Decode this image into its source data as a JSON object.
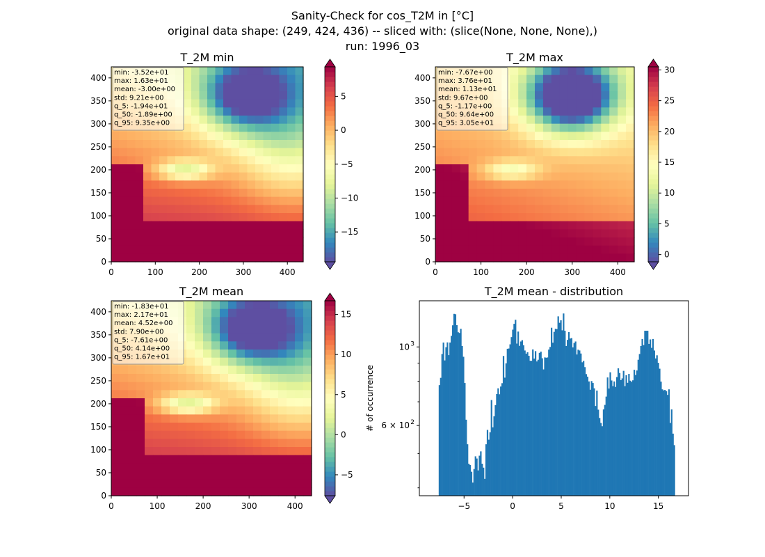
{
  "suptitle": {
    "line1": "Sanity-Check for cos_T2M in [°C]",
    "line2": "original data shape: (249, 424, 436) -- sliced with: (slice(None, None, None),)",
    "line3": "run: 1996_03"
  },
  "colors": {
    "hist_bar": "#1f77b4",
    "colormap": [
      "#5e4fa2",
      "#3288bd",
      "#66c2a5",
      "#abdda4",
      "#e6f598",
      "#ffffbf",
      "#fee08b",
      "#fdae61",
      "#f46d43",
      "#d53e4f",
      "#9e0142"
    ]
  },
  "chart_data": [
    {
      "type": "heatmap",
      "title": "T_2M min",
      "xlim": [
        0,
        436
      ],
      "ylim": [
        0,
        424
      ],
      "xticks": [
        0,
        100,
        200,
        300,
        400
      ],
      "yticks": [
        0,
        50,
        100,
        150,
        200,
        250,
        300,
        350,
        400
      ],
      "colorbar": {
        "range": [
          -19.4,
          9.35
        ],
        "ticks": [
          5,
          0,
          -5,
          -10,
          -15
        ],
        "tick_labels": [
          "5",
          "0",
          "−5",
          "−10",
          "−15"
        ],
        "extend": "both"
      },
      "stats": [
        "min: -3.52e+01",
        "max: 1.63e+01",
        "mean: -3.00e+00",
        "std: 9.21e+00",
        "q_5: -1.94e+01",
        "q_50: -1.89e+00",
        "q_95: 9.35e+00"
      ]
    },
    {
      "type": "heatmap",
      "title": "T_2M max",
      "xlim": [
        0,
        436
      ],
      "ylim": [
        0,
        424
      ],
      "xticks": [
        0,
        100,
        200,
        300,
        400
      ],
      "yticks": [
        0,
        50,
        100,
        150,
        200,
        250,
        300,
        350,
        400
      ],
      "colorbar": {
        "range": [
          -1.17,
          30.5
        ],
        "ticks": [
          30,
          25,
          20,
          15,
          10,
          5,
          0
        ],
        "tick_labels": [
          "30",
          "25",
          "20",
          "15",
          "10",
          "5",
          "0"
        ],
        "extend": "both"
      },
      "stats": [
        "min: -7.67e+00",
        "max: 3.76e+01",
        "mean: 1.13e+01",
        "std: 9.67e+00",
        "q_5: -1.17e+00",
        "q_50: 9.64e+00",
        "q_95: 3.05e+01"
      ]
    },
    {
      "type": "heatmap",
      "title": "T_2M mean",
      "xlim": [
        0,
        436
      ],
      "ylim": [
        0,
        424
      ],
      "xticks": [
        0,
        100,
        200,
        300,
        400
      ],
      "yticks": [
        0,
        50,
        100,
        150,
        200,
        250,
        300,
        350,
        400
      ],
      "colorbar": {
        "range": [
          -7.61,
          16.7
        ],
        "ticks": [
          15,
          10,
          5,
          0,
          -5
        ],
        "tick_labels": [
          "15",
          "10",
          "5",
          "0",
          "−5"
        ],
        "extend": "both"
      },
      "stats": [
        "min: -1.83e+01",
        "max: 2.17e+01",
        "mean: 4.52e+00",
        "std: 7.90e+00",
        "q_5: -7.61e+00",
        "q_50: 4.14e+00",
        "q_95: 1.67e+01"
      ]
    },
    {
      "type": "bar",
      "title": "T_2M mean - distribution",
      "ylabel": "# of occurrence",
      "yscale": "log",
      "xlim": [
        -9.6,
        18.1
      ],
      "ylim": [
        380,
        1350
      ],
      "xticks": [
        -5,
        0,
        5,
        10,
        15
      ],
      "xtick_labels": [
        "−5",
        "0",
        "5",
        "10",
        "15"
      ],
      "ytick_labels": [
        {
          "value": 1000,
          "base": "10",
          "exp": "3"
        },
        {
          "value": 600,
          "base": "6 × 10",
          "exp": "2"
        }
      ],
      "bin_range": [
        -7.61,
        16.7
      ],
      "counts": [
        780,
        818,
        955,
        1029,
        916,
        998,
        1030,
        948,
        1029,
        1075,
        1151,
        1240,
        1237,
        1152,
        1100,
        1095,
        1125,
        1006,
        938,
        791,
        623,
        531,
        468,
        464,
        444,
        414,
        452,
        491,
        484,
        448,
        493,
        507,
        468,
        456,
        424,
        531,
        583,
        547,
        574,
        708,
        593,
        637,
        685,
        736,
        764,
        735,
        773,
        790,
        943,
        819,
        899,
        988,
        990,
        1017,
        1066,
        1119,
        1162,
        1193,
        1022,
        1105,
        1007,
        1036,
        1045,
        1011,
        977,
        957,
        966,
        944,
        914,
        914,
        984,
        927,
        973,
        910,
        920,
        962,
        970,
        929,
        864,
        934,
        932,
        934,
        983,
        1000,
        1133,
        1028,
        1103,
        1125,
        1123,
        1220,
        1170,
        1189,
        1114,
        1243,
        1111,
        1006,
        1047,
        1101,
        1056,
        1059,
        997,
        1026,
        1036,
        952,
        982,
        977,
        958,
        905,
        913,
        877,
        838,
        824,
        799,
        757,
        801,
        791,
        764,
        681,
        753,
        665,
        630,
        610,
        597,
        666,
        686,
        724,
        820,
        763,
        848,
        804,
        775,
        799,
        771,
        822,
        870,
        844,
        806,
        815,
        856,
        775,
        832,
        792,
        839,
        803,
        797,
        805,
        862,
        833,
        858,
        920,
        955,
        1006,
        1053,
        1012,
        1111,
        1111,
        1111,
        1020,
        1050,
        994,
        1053,
        977,
        928,
        947,
        902,
        868,
        798,
        759,
        754,
        756,
        750,
        732,
        759,
        610,
        666,
        569,
        528
      ]
    }
  ]
}
